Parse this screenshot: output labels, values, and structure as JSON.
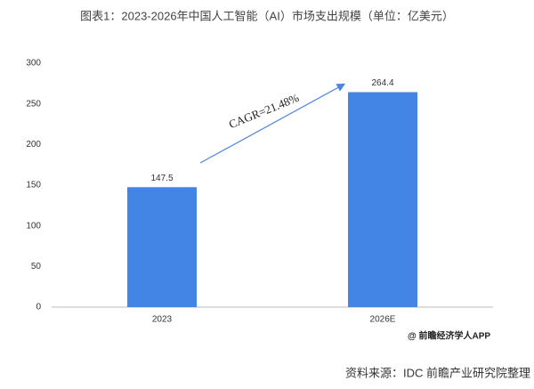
{
  "chart_data": {
    "type": "bar",
    "title": "图表1：2023-2026年中国人工智能（AI）市场支出规模（单位：亿美元）",
    "categories": [
      "2023",
      "2026E"
    ],
    "values": [
      147.5,
      264.4
    ],
    "color": "#4285e4",
    "ylim": [
      0,
      300
    ],
    "yticks": [
      0,
      50,
      100,
      150,
      200,
      250,
      300
    ],
    "grid": false,
    "annotation": "CAGR=21.48%",
    "watermark": "@ 前瞻经济学人APP",
    "source": "资料来源：IDC 前瞻产业研究院整理"
  }
}
